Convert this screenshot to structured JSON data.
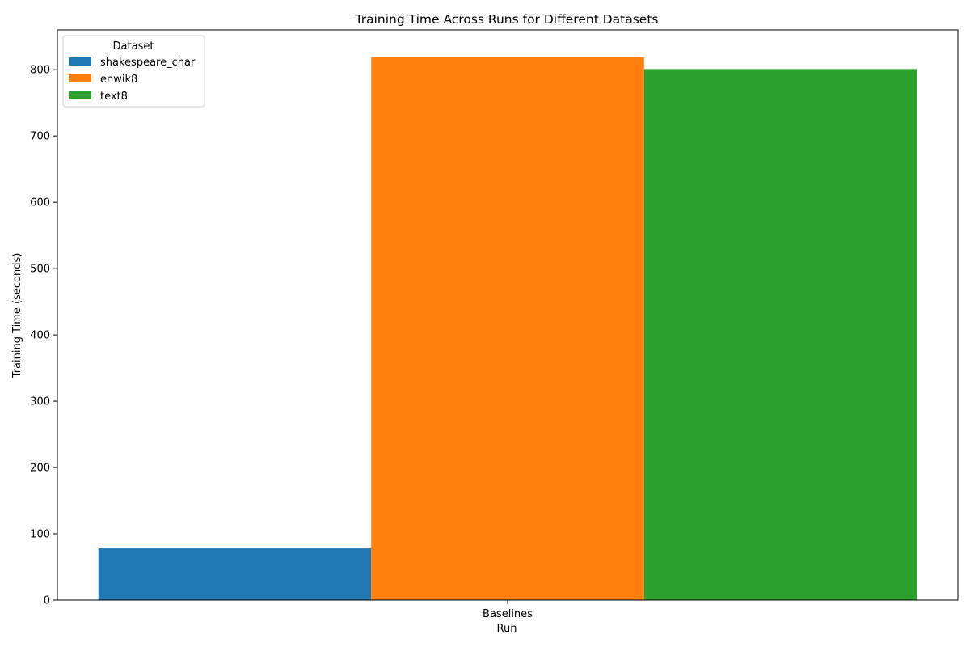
{
  "chart_data": {
    "type": "bar",
    "title": "Training Time Across Runs for Different Datasets",
    "xlabel": "Run",
    "ylabel": "Training Time (seconds)",
    "categories": [
      "Baselines"
    ],
    "series": [
      {
        "name": "shakespeare_char",
        "values": [
          78
        ],
        "color": "#1f77b4"
      },
      {
        "name": "enwik8",
        "values": [
          819
        ],
        "color": "#ff7f0e"
      },
      {
        "name": "text8",
        "values": [
          801
        ],
        "color": "#2ca02c"
      }
    ],
    "ylim": [
      0,
      860
    ],
    "yticks": [
      0,
      100,
      200,
      300,
      400,
      500,
      600,
      700,
      800
    ],
    "grid": false,
    "legend": {
      "title": "Dataset",
      "placement": "top-left"
    }
  }
}
